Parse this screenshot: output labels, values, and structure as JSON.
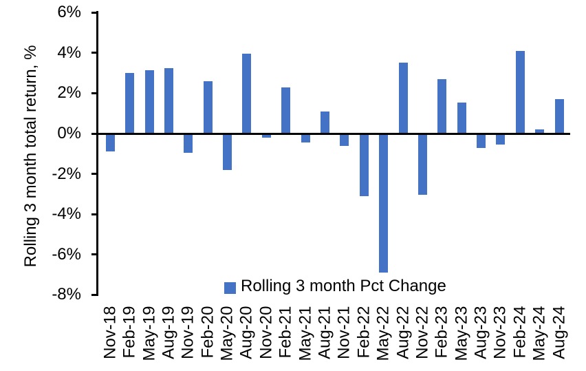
{
  "chart_data": {
    "type": "bar",
    "title": "",
    "xlabel": "",
    "ylabel": "Rolling 3 month total return, %",
    "ylim": [
      -8,
      6
    ],
    "ytick_values": [
      6,
      4,
      2,
      0,
      -2,
      -4,
      -6,
      -8
    ],
    "ytick_labels": [
      "6%",
      "4%",
      "2%",
      "0%",
      "-2%",
      "-4%",
      "-6%",
      "-8%"
    ],
    "grid": false,
    "bar_color": "#4472C4",
    "axis_color": "#000000",
    "legend": {
      "label": "Rolling 3 month Pct Change",
      "position": "bottom-center",
      "marker_color": "#4472C4"
    },
    "categories": [
      "Nov-18",
      "Feb-19",
      "May-19",
      "Aug-19",
      "Nov-19",
      "Feb-20",
      "May-20",
      "Aug-20",
      "Nov-20",
      "Feb-21",
      "May-21",
      "Aug-21",
      "Nov-21",
      "Feb-22",
      "May-22",
      "Aug-22",
      "Nov-22",
      "Feb-23",
      "May-23",
      "Aug-23",
      "Nov-23",
      "Feb-24",
      "May-24",
      "Aug-24"
    ],
    "values": [
      -0.9,
      3.0,
      3.15,
      3.25,
      -0.95,
      2.6,
      -1.8,
      3.95,
      -0.2,
      2.3,
      -0.45,
      1.1,
      -0.6,
      -3.1,
      -6.9,
      3.5,
      -3.05,
      2.7,
      1.55,
      -0.7,
      -0.55,
      4.1,
      0.2,
      1.7
    ]
  }
}
